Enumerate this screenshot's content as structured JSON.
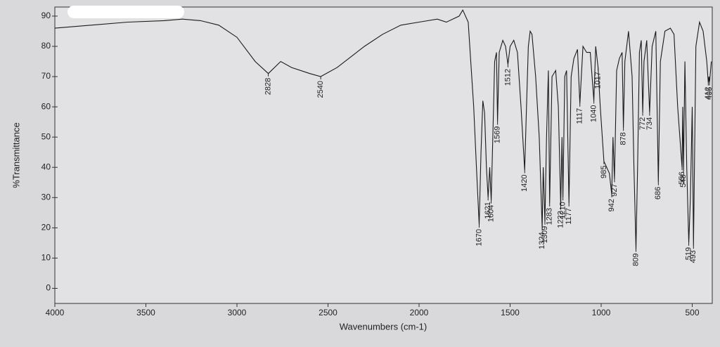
{
  "chart_data": {
    "type": "line",
    "x_label": "Wavenumbers (cm-1)",
    "y_label": "%Transmittance",
    "xlim": [
      4000,
      390
    ],
    "ylim": [
      -5,
      93
    ],
    "xticks": [
      4000,
      3500,
      3000,
      2500,
      2000,
      1500,
      1000,
      500
    ],
    "yticks": [
      0,
      10,
      20,
      30,
      40,
      50,
      60,
      70,
      80,
      90
    ],
    "grid": false,
    "series": [
      {
        "color": "#1a1a1a",
        "x": [
          4000,
          3800,
          3600,
          3400,
          3300,
          3200,
          3100,
          3000,
          2900,
          2828,
          2760,
          2700,
          2600,
          2540,
          2450,
          2300,
          2200,
          2100,
          2000,
          1900,
          1850,
          1780,
          1760,
          1730,
          1700,
          1685,
          1670,
          1660,
          1650,
          1640,
          1630,
          1621,
          1612,
          1604,
          1595,
          1585,
          1575,
          1569,
          1560,
          1540,
          1525,
          1512,
          1500,
          1480,
          1460,
          1440,
          1420,
          1410,
          1400,
          1390,
          1380,
          1360,
          1340,
          1324,
          1318,
          1309,
          1300,
          1290,
          1283,
          1270,
          1250,
          1235,
          1222,
          1215,
          1210,
          1200,
          1190,
          1177,
          1165,
          1150,
          1130,
          1117,
          1100,
          1080,
          1060,
          1040,
          1030,
          1017,
          1005,
          985,
          970,
          955,
          942,
          935,
          927,
          915,
          900,
          885,
          878,
          870,
          850,
          830,
          820,
          809,
          800,
          790,
          780,
          772,
          765,
          750,
          734,
          720,
          700,
          686,
          675,
          650,
          620,
          600,
          580,
          556,
          552,
          548,
          540,
          530,
          519,
          510,
          500,
          493,
          480,
          460,
          440,
          420,
          412,
          408,
          405,
          395
        ],
        "values": [
          86,
          87,
          88,
          88.5,
          89,
          88.5,
          87,
          83,
          75,
          71,
          75,
          73,
          71,
          70,
          73,
          80,
          84,
          87,
          88,
          89,
          88,
          90,
          92,
          88,
          60,
          40,
          21,
          45,
          62,
          58,
          40,
          30,
          40,
          29,
          50,
          75,
          78,
          55,
          78,
          82,
          80,
          74,
          80,
          82,
          78,
          60,
          39,
          60,
          80,
          85,
          84,
          70,
          50,
          20,
          40,
          22,
          50,
          72,
          28,
          70,
          72,
          60,
          27,
          50,
          30,
          70,
          72,
          28,
          70,
          76,
          79,
          61,
          80,
          78,
          78,
          62,
          80,
          73,
          60,
          42,
          40,
          38,
          31,
          50,
          36,
          72,
          76,
          78,
          53,
          75,
          85,
          70,
          40,
          13,
          40,
          78,
          82,
          58,
          75,
          82,
          58,
          80,
          85,
          35,
          75,
          85,
          86,
          84,
          60,
          40,
          60,
          39,
          75,
          40,
          15,
          30,
          60,
          14,
          80,
          88,
          85,
          75,
          68,
          70,
          68,
          75
        ]
      }
    ],
    "peaks": [
      {
        "x": 2828,
        "y": 71
      },
      {
        "x": 2540,
        "y": 70
      },
      {
        "x": 1670,
        "y": 21
      },
      {
        "x": 1621,
        "y": 30
      },
      {
        "x": 1604,
        "y": 29
      },
      {
        "x": 1569,
        "y": 55
      },
      {
        "x": 1512,
        "y": 74
      },
      {
        "x": 1420,
        "y": 39
      },
      {
        "x": 1324,
        "y": 20
      },
      {
        "x": 1309,
        "y": 22
      },
      {
        "x": 1283,
        "y": 28
      },
      {
        "x": 1222,
        "y": 27
      },
      {
        "x": 1210,
        "y": 30
      },
      {
        "x": 1177,
        "y": 28
      },
      {
        "x": 1117,
        "y": 61
      },
      {
        "x": 1040,
        "y": 62
      },
      {
        "x": 1017,
        "y": 73
      },
      {
        "x": 985,
        "y": 42
      },
      {
        "x": 942,
        "y": 31
      },
      {
        "x": 927,
        "y": 36
      },
      {
        "x": 878,
        "y": 53
      },
      {
        "x": 809,
        "y": 13
      },
      {
        "x": 772,
        "y": 58
      },
      {
        "x": 734,
        "y": 58
      },
      {
        "x": 686,
        "y": 35
      },
      {
        "x": 556,
        "y": 40
      },
      {
        "x": 548,
        "y": 39
      },
      {
        "x": 519,
        "y": 15
      },
      {
        "x": 493,
        "y": 14
      },
      {
        "x": 412,
        "y": 68
      },
      {
        "x": 405,
        "y": 68
      }
    ]
  }
}
